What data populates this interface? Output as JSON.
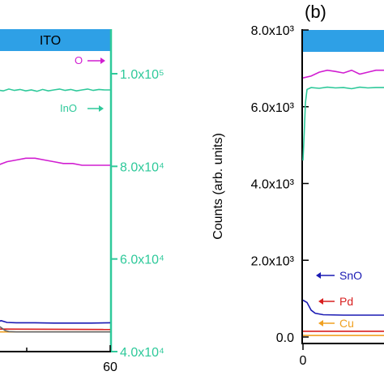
{
  "chart_data": [
    {
      "id": "a",
      "type": "line",
      "band_label": "ITO",
      "x_ticks": [
        "60"
      ],
      "right_axis": {
        "ticks": [
          {
            "value": 40000,
            "label": "4.0x10⁴"
          },
          {
            "value": 60000,
            "label": "6.0x10⁴"
          },
          {
            "value": 80000,
            "label": "8.0x10⁴"
          },
          {
            "value": 100000,
            "label": "1.0x10⁵"
          }
        ],
        "color": "#2ec99a"
      },
      "series": [
        {
          "name": "O",
          "axis": "left",
          "color": "#d11ed1",
          "points": [
            [
              0,
              0.53
            ],
            [
              5,
              0.54
            ],
            [
              10,
              0.545
            ],
            [
              15,
              0.55
            ],
            [
              20,
              0.55
            ],
            [
              25,
              0.545
            ],
            [
              30,
              0.54
            ],
            [
              35,
              0.535
            ],
            [
              40,
              0.535
            ],
            [
              45,
              0.53
            ],
            [
              50,
              0.53
            ],
            [
              55,
              0.53
            ],
            [
              60,
              0.53
            ]
          ]
        },
        {
          "name": "InO",
          "axis": "right",
          "color": "#2ec99a",
          "points": [
            [
              0,
              96500
            ],
            [
              3,
              96300
            ],
            [
              6,
              96700
            ],
            [
              9,
              96400
            ],
            [
              12,
              96600
            ],
            [
              15,
              96300
            ],
            [
              18,
              96500
            ],
            [
              21,
              96200
            ],
            [
              24,
              96600
            ],
            [
              27,
              96300
            ],
            [
              30,
              96500
            ],
            [
              33,
              96700
            ],
            [
              36,
              96400
            ],
            [
              39,
              96600
            ],
            [
              42,
              96300
            ],
            [
              45,
              96500
            ],
            [
              48,
              96700
            ],
            [
              51,
              96400
            ],
            [
              54,
              96600
            ],
            [
              57,
              96500
            ],
            [
              60,
              96500
            ]
          ]
        },
        {
          "name": "",
          "axis": "left",
          "color": "#1a1ab3",
          "points": [
            [
              0,
              0.085
            ],
            [
              2,
              0.088
            ],
            [
              5,
              0.083
            ],
            [
              10,
              0.082
            ],
            [
              20,
              0.082
            ],
            [
              30,
              0.081
            ],
            [
              40,
              0.081
            ],
            [
              50,
              0.081
            ],
            [
              60,
              0.082
            ]
          ]
        },
        {
          "name": "",
          "axis": "left",
          "color": "#d81f1f",
          "points": [
            [
              0,
              0.064
            ],
            [
              60,
              0.063
            ]
          ]
        },
        {
          "name": "",
          "axis": "left",
          "color": "#f0a020",
          "points": [
            [
              0,
              0.056
            ],
            [
              60,
              0.056
            ]
          ]
        },
        {
          "name": "",
          "axis": "left",
          "color": "#666666",
          "points": [
            [
              0,
              0.075
            ],
            [
              2,
              0.068
            ],
            [
              4,
              0.06
            ],
            [
              6,
              0.057
            ],
            [
              10,
              0.056
            ],
            [
              60,
              0.056
            ]
          ]
        }
      ]
    },
    {
      "id": "b",
      "type": "line",
      "panel_label": "(b)",
      "ylabel": "Counts (arb. units)",
      "x_ticks": [
        "0"
      ],
      "y_ticks": [
        {
          "value": 0,
          "label": "0.0"
        },
        {
          "value": 2000,
          "label": "2.0x10³"
        },
        {
          "value": 4000,
          "label": "4.0x10³"
        },
        {
          "value": 6000,
          "label": "6.0x10³"
        },
        {
          "value": 8000,
          "label": "8.0x10³"
        }
      ],
      "ylim": [
        0,
        8000
      ],
      "series": [
        {
          "name": "",
          "color": "#d11ed1",
          "points": [
            [
              0,
              6750
            ],
            [
              2,
              6800
            ],
            [
              4,
              6900
            ],
            [
              6,
              6950
            ],
            [
              8,
              6920
            ],
            [
              10,
              6880
            ],
            [
              12,
              6950
            ],
            [
              14,
              6850
            ],
            [
              16,
              6900
            ],
            [
              18,
              6950
            ],
            [
              20,
              6950
            ]
          ]
        },
        {
          "name": "",
          "color": "#2ec99a",
          "points": [
            [
              0,
              4600
            ],
            [
              0.3,
              5300
            ],
            [
              0.6,
              6100
            ],
            [
              1,
              6450
            ],
            [
              2,
              6500
            ],
            [
              4,
              6480
            ],
            [
              6,
              6510
            ],
            [
              8,
              6490
            ],
            [
              10,
              6500
            ],
            [
              12,
              6470
            ],
            [
              14,
              6510
            ],
            [
              16,
              6490
            ],
            [
              18,
              6500
            ],
            [
              20,
              6500
            ]
          ]
        },
        {
          "name": "SnO",
          "color": "#1a1ab3",
          "points": [
            [
              0,
              960
            ],
            [
              1,
              900
            ],
            [
              2,
              700
            ],
            [
              3,
              620
            ],
            [
              5,
              580
            ],
            [
              10,
              570
            ],
            [
              20,
              570
            ]
          ]
        },
        {
          "name": "Pd",
          "color": "#d81f1f",
          "points": [
            [
              0,
              150
            ],
            [
              20,
              150
            ]
          ]
        },
        {
          "name": "Cu",
          "color": "#f0a020",
          "points": [
            [
              0,
              40
            ],
            [
              20,
              40
            ]
          ]
        }
      ]
    }
  ]
}
